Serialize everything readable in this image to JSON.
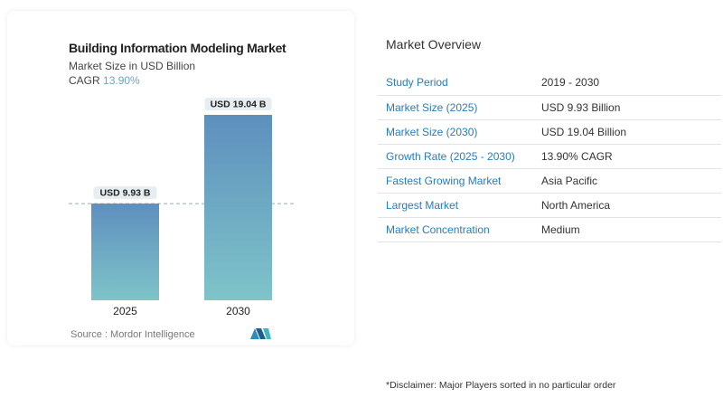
{
  "chart_data": {
    "type": "bar",
    "title": "Building Information Modeling Market",
    "subtitle": "Market Size in USD Billion",
    "cagr_label": "CAGR",
    "cagr_value": "13.90%",
    "categories": [
      "2025",
      "2030"
    ],
    "values": [
      9.93,
      19.04
    ],
    "data_labels": [
      "USD 9.93 B",
      "USD 19.04 B"
    ],
    "ylim": [
      0,
      20.5
    ],
    "reference_line_value": 9.93,
    "colors": {
      "bar_top": "#5e8fbe",
      "bar_bottom": "#7ec4c9"
    }
  },
  "source": {
    "label": "Source :",
    "value": "Mordor Intelligence"
  },
  "overview": {
    "title": "Market Overview",
    "rows": [
      {
        "label": "Study Period",
        "value": "2019 - 2030"
      },
      {
        "label": "Market Size (2025)",
        "value": "USD 9.93 Billion"
      },
      {
        "label": "Market Size (2030)",
        "value": "USD 19.04 Billion"
      },
      {
        "label": "Growth Rate (2025 - 2030)",
        "value": "13.90% CAGR"
      },
      {
        "label": "Fastest Growing Market",
        "value": "Asia Pacific"
      },
      {
        "label": "Largest Market",
        "value": "North America"
      },
      {
        "label": "Market Concentration",
        "value": "Medium"
      }
    ]
  },
  "disclaimer": "*Disclaimer: Major Players sorted in no particular order"
}
